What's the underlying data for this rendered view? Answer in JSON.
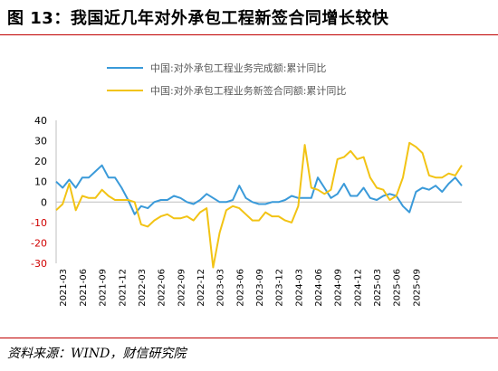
{
  "header": {
    "title": "图 13：我国近几年对外承包工程新签合同增长较快"
  },
  "footer": {
    "source": "资料来源：WIND，财信研究院"
  },
  "colors": {
    "series1": "#3a9ad9",
    "series2": "#f2c314",
    "axis_red": "#d00000",
    "rule": "#c00000"
  },
  "chart_data": {
    "type": "line",
    "legend": "top-center",
    "grid": false,
    "ylim": [
      -30,
      40
    ],
    "yticks": [
      40,
      30,
      20,
      10,
      0,
      -10,
      -20,
      -30
    ],
    "xticks": [
      "2021-03",
      "2021-06",
      "2021-09",
      "2021-12",
      "2022-03",
      "2022-06",
      "2022-09",
      "2022-12",
      "2023-03",
      "2023-06",
      "2023-09",
      "2023-12",
      "2024-03",
      "2024-06",
      "2024-09",
      "2024-12",
      "2025-03",
      "2025-06",
      "2025-09"
    ],
    "series": [
      {
        "name": "中国:对外承包工程业务完成额:累计同比",
        "color": "#3a9ad9",
        "values": [
          10,
          7,
          11,
          7,
          12,
          12,
          15,
          18,
          12,
          12,
          7,
          1,
          -6,
          -2,
          -3,
          0,
          1,
          1,
          3,
          2,
          0,
          -1,
          1,
          4,
          2,
          0,
          0,
          1,
          8,
          2,
          0,
          -1,
          -1,
          0,
          0,
          1,
          3,
          2,
          2,
          2,
          12,
          7,
          2,
          4,
          9,
          3,
          3,
          7,
          2,
          1,
          3,
          4,
          3,
          -2,
          -5,
          5,
          7,
          6,
          8,
          5,
          9,
          12,
          8
        ]
      },
      {
        "name": "中国:对外承包工程业务新签合同额:累计同比",
        "color": "#f2c314",
        "values": [
          -4,
          -1,
          9,
          -4,
          3,
          2,
          2,
          6,
          3,
          1,
          1,
          1,
          0,
          -11,
          -12,
          -9,
          -7,
          -6,
          -8,
          -8,
          -7,
          -9,
          -5,
          -3,
          -32,
          -15,
          -4,
          -2,
          -3,
          -6,
          -9,
          -9,
          -5,
          -7,
          -7,
          -9,
          -10,
          -2,
          28,
          7,
          6,
          4,
          6,
          21,
          22,
          25,
          21,
          22,
          12,
          7,
          6,
          1,
          3,
          12,
          29,
          27,
          24,
          13,
          12,
          12,
          14,
          13,
          18
        ]
      }
    ]
  }
}
